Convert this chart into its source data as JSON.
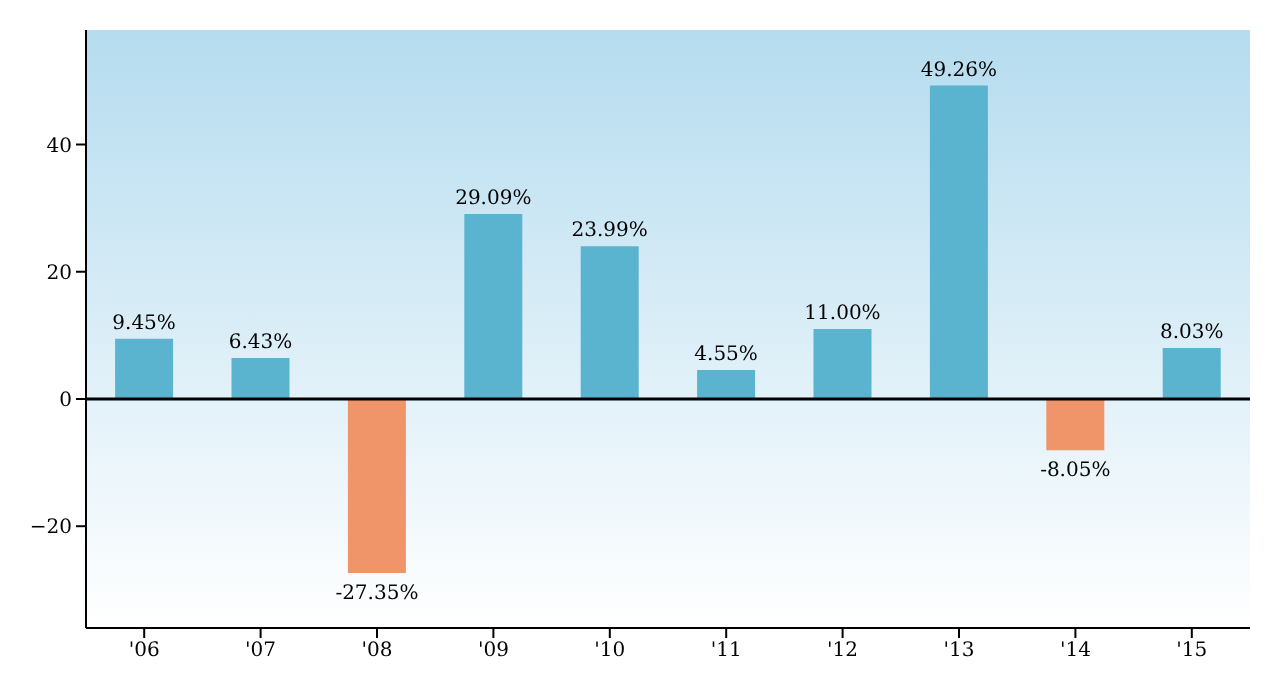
{
  "chart_data": {
    "type": "bar",
    "categories": [
      "'06",
      "'07",
      "'08",
      "'09",
      "'10",
      "'11",
      "'12",
      "'13",
      "'14",
      "'15"
    ],
    "values": [
      9.45,
      6.43,
      -27.35,
      29.09,
      23.99,
      4.55,
      11.0,
      49.26,
      -8.05,
      8.03
    ],
    "colors": [
      "#5ab4d0",
      "#5ab4d0",
      "#f0956a",
      "#5ab4d0",
      "#5ab4d0",
      "#5ab4d0",
      "#5ab4d0",
      "#5ab4d0",
      "#f0956a",
      "#5ab4d0"
    ],
    "value_labels": [
      "9.45%",
      "6.43%",
      "-27.35%",
      "29.09%",
      "23.99%",
      "4.55%",
      "11.00%",
      "49.26%",
      "-8.05%",
      "8.03%"
    ],
    "ylim": [
      -36,
      58
    ],
    "yticks": [
      -20,
      0,
      20,
      40
    ],
    "grid": false,
    "ref_lines": [
      {
        "axis": "y",
        "value": 0,
        "color": "#000000"
      }
    ]
  }
}
